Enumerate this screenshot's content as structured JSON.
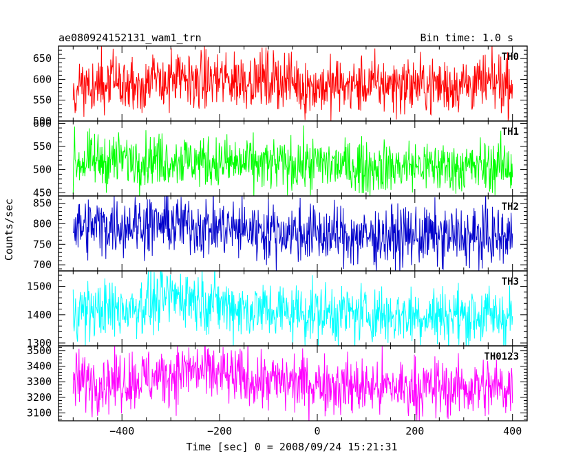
{
  "header": {
    "title": "ae080924152131_wam1_trn",
    "bin_time": "Bin time: 1.0 s"
  },
  "chart_data": {
    "type": "line",
    "title": "ae080924152131_wam1_trn",
    "xlabel": "Time [sec] 0 = 2008/09/24 15:21:31",
    "ylabel": "Counts/sec",
    "xlim": [
      -530,
      430
    ],
    "x_range": [
      -500,
      400
    ],
    "x_ticks": [
      -400,
      -200,
      0,
      200,
      400
    ],
    "x_tick_labels": [
      "−400",
      "−200",
      "0",
      "200",
      "400"
    ],
    "grid": false,
    "panels": [
      {
        "name": "TH0",
        "color": "#ff0000",
        "ylim": [
          500,
          680
        ],
        "ticks": [
          500,
          550,
          600,
          650
        ],
        "mean_profile": [
          [
            -500,
            578
          ],
          [
            -420,
            585
          ],
          [
            -320,
            596
          ],
          [
            -220,
            598
          ],
          [
            -120,
            600
          ],
          [
            -40,
            595
          ],
          [
            -35,
            582
          ],
          [
            50,
            584
          ],
          [
            150,
            588
          ],
          [
            250,
            586
          ],
          [
            400,
            590
          ]
        ],
        "amplitude": 34
      },
      {
        "name": "TH1",
        "color": "#00ff00",
        "ylim": [
          443,
          605
        ],
        "ticks": [
          450,
          500,
          550,
          600
        ],
        "mean_profile": [
          [
            -500,
            515
          ],
          [
            -400,
            523
          ],
          [
            -300,
            522
          ],
          [
            -200,
            515
          ],
          [
            -100,
            510
          ],
          [
            0,
            512
          ],
          [
            100,
            505
          ],
          [
            200,
            507
          ],
          [
            300,
            505
          ],
          [
            400,
            508
          ]
        ],
        "amplitude": 28
      },
      {
        "name": "TH2",
        "color": "#0000cc",
        "ylim": [
          685,
          868
        ],
        "ticks": [
          700,
          750,
          800,
          850
        ],
        "mean_profile": [
          [
            -500,
            790
          ],
          [
            -400,
            798
          ],
          [
            -300,
            800
          ],
          [
            -200,
            790
          ],
          [
            -100,
            782
          ],
          [
            0,
            775
          ],
          [
            100,
            768
          ],
          [
            200,
            770
          ],
          [
            300,
            768
          ],
          [
            400,
            766
          ]
        ],
        "amplitude": 36
      },
      {
        "name": "TH3",
        "color": "#00ffff",
        "ylim": [
          1290,
          1555
        ],
        "ticks": [
          1300,
          1400,
          1500
        ],
        "mean_profile": [
          [
            -500,
            1415
          ],
          [
            -400,
            1418
          ],
          [
            -350,
            1440
          ],
          [
            -280,
            1470
          ],
          [
            -220,
            1445
          ],
          [
            -150,
            1420
          ],
          [
            -50,
            1410
          ],
          [
            50,
            1405
          ],
          [
            150,
            1400
          ],
          [
            250,
            1398
          ],
          [
            400,
            1395
          ]
        ],
        "amplitude": 52
      },
      {
        "name": "TH0123",
        "color": "#ff00ff",
        "ylim": [
          3050,
          3530
        ],
        "ticks": [
          3100,
          3200,
          3300,
          3400,
          3500
        ],
        "mean_profile": [
          [
            -500,
            3300
          ],
          [
            -400,
            3310
          ],
          [
            -320,
            3330
          ],
          [
            -260,
            3380
          ],
          [
            -200,
            3340
          ],
          [
            -100,
            3300
          ],
          [
            0,
            3290
          ],
          [
            100,
            3265
          ],
          [
            200,
            3260
          ],
          [
            300,
            3265
          ],
          [
            400,
            3262
          ]
        ],
        "amplitude": 95
      }
    ]
  }
}
